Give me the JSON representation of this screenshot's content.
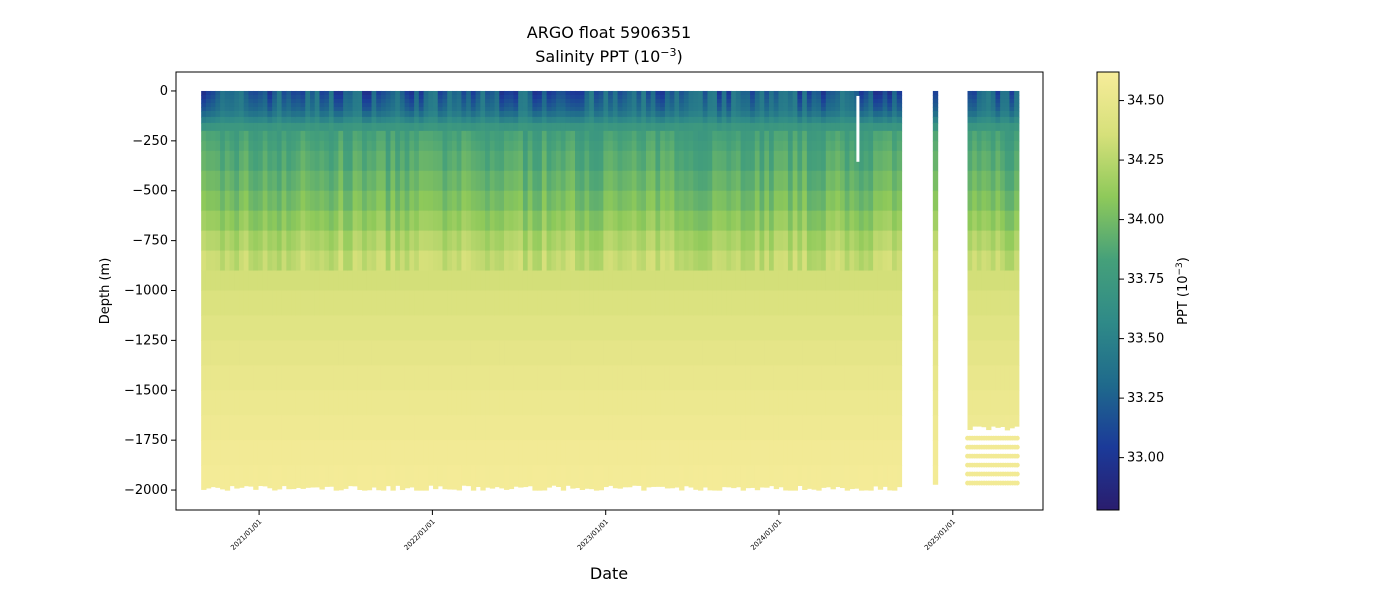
{
  "chart_data": {
    "type": "heatmap",
    "title": "ARGO float 5906351",
    "subtitle_prefix": "Salinity PPT (10",
    "subtitle_exp": "−3",
    "subtitle_suffix": ")",
    "xlabel": "Date",
    "ylabel": "Depth (m)",
    "x_ticks": [
      "2021/01/01",
      "2022/01/01",
      "2023/01/01",
      "2024/01/01",
      "2025/01/01"
    ],
    "y_ticks": [
      0,
      -250,
      -500,
      -750,
      -1000,
      -1250,
      -1500,
      -1750,
      -2000
    ],
    "xlim": [
      "2020-07-10",
      "2025-07-10"
    ],
    "ylim": [
      -2100,
      95
    ],
    "colorbar": {
      "label_prefix": "PPT (10",
      "label_exp": "−3",
      "label_suffix": ")",
      "range": [
        32.78,
        34.62
      ],
      "ticks": [
        33.0,
        33.25,
        33.5,
        33.75,
        34.0,
        34.25,
        34.5
      ],
      "colormap": "haline",
      "colors": [
        "#2a1d6e",
        "#1b3a99",
        "#1f6a8c",
        "#2f8a88",
        "#45a07a",
        "#8ec95a",
        "#d6e07a",
        "#f7ec9a"
      ]
    },
    "segments": [
      {
        "start": "2020-09-01",
        "end": "2024-09-15",
        "max_depth": -1990
      },
      {
        "start": "2024-11-20",
        "end": "2024-11-30",
        "max_depth": -1980
      },
      {
        "start": "2025-02-01",
        "end": "2025-05-20",
        "max_depth": -1690,
        "sparse_to": -1980
      }
    ],
    "salinity_profile": [
      {
        "depth": 0,
        "psu": 33.2
      },
      {
        "depth": -100,
        "psu": 33.35
      },
      {
        "depth": -200,
        "psu": 33.8
      },
      {
        "depth": -400,
        "psu": 33.92
      },
      {
        "depth": -600,
        "psu": 34.05
      },
      {
        "depth": -800,
        "psu": 34.25
      },
      {
        "depth": -1000,
        "psu": 34.38
      },
      {
        "depth": -1250,
        "psu": 34.46
      },
      {
        "depth": -1500,
        "psu": 34.52
      },
      {
        "depth": -1750,
        "psu": 34.57
      },
      {
        "depth": -2000,
        "psu": 34.6
      }
    ]
  }
}
